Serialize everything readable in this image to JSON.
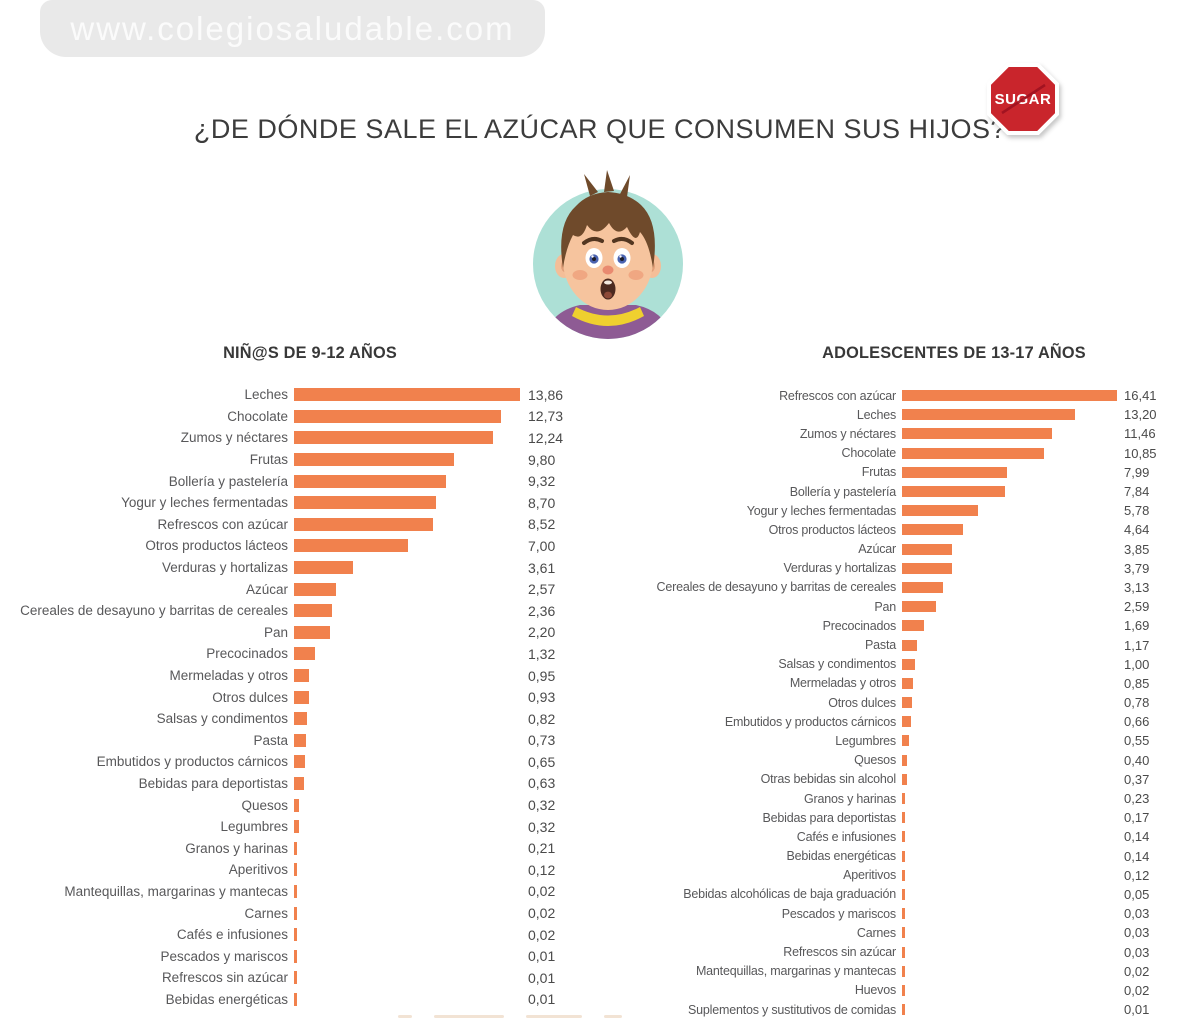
{
  "page": {
    "watermark": "www.colegiosaludable.com",
    "title": "¿DE DÓNDE SALE EL AZÚCAR QUE CONSUMEN SUS HIJOS?",
    "stop_sign_label": "SUGAR"
  },
  "colors": {
    "bar_orange": "#f1814d",
    "stop_sign_red": "#c9252c",
    "watermark_bg": "#e9e9e9",
    "watermark_text": "#fbfbfb",
    "title_text": "#3c3c3c",
    "category_text": "#58585a",
    "value_text": "#4a4a4a",
    "boy_circle_mint": "#ade0d6"
  },
  "chart_data": [
    {
      "type": "bar",
      "orientation": "horizontal",
      "title": "NIÑ@S DE 9-12 AÑOS",
      "xlim": [
        0,
        14
      ],
      "grid": false,
      "legend": "none",
      "categories": [
        "Leches",
        "Chocolate",
        "Zumos y néctares",
        "Frutas",
        "Bollería y pastelería",
        "Yogur y leches fermentadas",
        "Refrescos con azúcar",
        "Otros productos lácteos",
        "Verduras y hortalizas",
        "Azúcar",
        "Cereales de desayuno y barritas de cereales",
        "Pan",
        "Precocinados",
        "Mermeladas y otros",
        "Otros dulces",
        "Salsas y condimentos",
        "Pasta",
        "Embutidos y productos cárnicos",
        "Bebidas para deportistas",
        "Quesos",
        "Legumbres",
        "Granos y harinas",
        "Aperitivos",
        "Mantequillas, margarinas y mantecas",
        "Carnes",
        "Cafés e infusiones",
        "Pescados y mariscos",
        "Refrescos sin azúcar",
        "Bebidas energéticas"
      ],
      "values": [
        13.86,
        12.73,
        12.24,
        9.8,
        9.32,
        8.7,
        8.52,
        7.0,
        3.61,
        2.57,
        2.36,
        2.2,
        1.32,
        0.95,
        0.93,
        0.82,
        0.73,
        0.65,
        0.63,
        0.32,
        0.32,
        0.21,
        0.12,
        0.02,
        0.02,
        0.02,
        0.01,
        0.01,
        0.01
      ],
      "value_labels": [
        "13,86",
        "12,73",
        "12,24",
        "9,80",
        "9,32",
        "8,70",
        "8,52",
        "7,00",
        "3,61",
        "2,57",
        "2,36",
        "2,20",
        "1,32",
        "0,95",
        "0,93",
        "0,82",
        "0,73",
        "0,65",
        "0,63",
        "0,32",
        "0,32",
        "0,21",
        "0,12",
        "0,02",
        "0,02",
        "0,02",
        "0,01",
        "0,01",
        "0,01"
      ]
    },
    {
      "type": "bar",
      "orientation": "horizontal",
      "title": "ADOLESCENTES DE 13-17 AÑOS",
      "xlim": [
        0,
        16.5
      ],
      "grid": false,
      "legend": "none",
      "categories": [
        "Refrescos con azúcar",
        "Leches",
        "Zumos y néctares",
        "Chocolate",
        "Frutas",
        "Bollería y pastelería",
        "Yogur y leches fermentadas",
        "Otros productos lácteos",
        "Azúcar",
        "Verduras y hortalizas",
        "Cereales de desayuno y barritas de cereales",
        "Pan",
        "Precocinados",
        "Pasta",
        "Salsas y condimentos",
        "Mermeladas y otros",
        "Otros dulces",
        "Embutidos y productos cárnicos",
        "Legumbres",
        "Quesos",
        "Otras bebidas sin alcohol",
        "Granos y harinas",
        "Bebidas para deportistas",
        "Cafés e infusiones",
        "Bebidas energéticas",
        "Aperitivos",
        "Bebidas alcohólicas de baja graduación",
        "Pescados y mariscos",
        "Carnes",
        "Refrescos sin azúcar",
        "Mantequillas, margarinas y mantecas",
        "Huevos",
        "Suplementos y sustitutivos de comidas"
      ],
      "values": [
        16.41,
        13.2,
        11.46,
        10.85,
        7.99,
        7.84,
        5.78,
        4.64,
        3.85,
        3.79,
        3.13,
        2.59,
        1.69,
        1.17,
        1.0,
        0.85,
        0.78,
        0.66,
        0.55,
        0.4,
        0.37,
        0.23,
        0.17,
        0.14,
        0.14,
        0.12,
        0.05,
        0.03,
        0.03,
        0.03,
        0.02,
        0.02,
        0.01
      ],
      "value_labels": [
        "16,41",
        "13,20",
        "11,46",
        "10,85",
        "7,99",
        "7,84",
        "5,78",
        "4,64",
        "3,85",
        "3,79",
        "3,13",
        "2,59",
        "1,69",
        "1,17",
        "1,00",
        "0,85",
        "0,78",
        "0,66",
        "0,55",
        "0,40",
        "0,37",
        "0,23",
        "0,17",
        "0,14",
        "0,14",
        "0,12",
        "0,05",
        "0,03",
        "0,03",
        "0,03",
        "0,02",
        "0,02",
        "0,01"
      ]
    }
  ]
}
